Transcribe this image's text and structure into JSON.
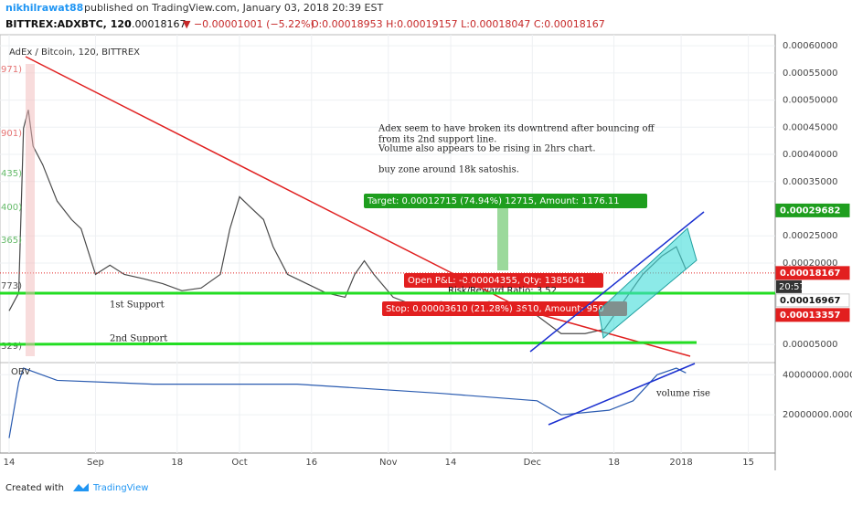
{
  "header": {
    "user": "nikhilrawat88",
    "published": "published on TradingView.com, January 03, 2018 20:39 EST",
    "symbol": "BITTREX:ADXBTC, 120",
    "last": "0.00018167",
    "change": "▼ −0.00001001 (−5.22%)",
    "ohlc": "O:0.00018953 H:0.00019157 L:0.00018047 C:0.00018167"
  },
  "chart_data": [
    {
      "type": "line",
      "title": "AdEx / Bitcoin, 120, BITTREX",
      "color": "#4a4a4a",
      "x": [
        0,
        2,
        3,
        4,
        5,
        7,
        10,
        13,
        15,
        18,
        21,
        24,
        28,
        32,
        36,
        40,
        44,
        46,
        48,
        50,
        53,
        55,
        58,
        62,
        66,
        70,
        72,
        74,
        76,
        80,
        85,
        90,
        95,
        100,
        105,
        110,
        115,
        120,
        124,
        128,
        132,
        136,
        139,
        141
      ],
      "values": [
        0.000112,
        0.000145,
        0.000448,
        0.000482,
        0.000415,
        0.000381,
        0.000314,
        0.00028,
        0.000263,
        0.000179,
        0.000196,
        0.000179,
        0.000171,
        0.000162,
        0.000149,
        0.000154,
        0.000179,
        0.000263,
        0.000322,
        0.000305,
        0.00028,
        0.00023,
        0.000179,
        0.000162,
        0.000145,
        0.000137,
        0.000179,
        0.000204,
        0.000179,
        0.000137,
        0.00012,
        0.000129,
        0.00012,
        0.000129,
        0.00012,
        0.000103,
        7e-05,
        7e-05,
        7.8e-05,
        0.000129,
        0.000179,
        0.000213,
        0.00023,
        0.000188
      ],
      "xlim": [
        -1.9,
        159.6
      ],
      "xticks": [
        {
          "value": 0,
          "label": "14"
        },
        {
          "value": 18,
          "label": "Sep"
        },
        {
          "value": 35,
          "label": "18"
        },
        {
          "value": 48,
          "label": "Oct"
        },
        {
          "value": 63,
          "label": "16"
        },
        {
          "value": 79,
          "label": "Nov"
        },
        {
          "value": 92,
          "label": "14"
        },
        {
          "value": 109,
          "label": "Dec"
        },
        {
          "value": 126,
          "label": "18"
        },
        {
          "value": 140,
          "label": "2018"
        },
        {
          "value": 154,
          "label": "15"
        }
      ],
      "ylim": [
        2e-05,
        0.000617
      ],
      "yticks": [
        {
          "value": 5e-05,
          "label": "0.00005000"
        },
        {
          "value": 0.0002,
          "label": "0.00020000"
        },
        {
          "value": 0.00025,
          "label": "0.00025000"
        },
        {
          "value": 0.00035,
          "label": "0.00035000"
        },
        {
          "value": 0.0004,
          "label": "0.00040000"
        },
        {
          "value": 0.00045,
          "label": "0.00045000"
        },
        {
          "value": 0.0005,
          "label": "0.00050000"
        },
        {
          "value": 0.00055,
          "label": "0.00055000"
        },
        {
          "value": 0.0006,
          "label": "0.00060000"
        }
      ],
      "grid": true,
      "price_badges": [
        {
          "value": 0.00029682,
          "label": "0.00029682",
          "color": "#1e9e1e"
        },
        {
          "value": 0.00018167,
          "label": "0.00018167",
          "color": "#e21f1f"
        },
        {
          "value": 0.00016967,
          "label": "0.00016967",
          "color": "#ffffff"
        },
        {
          "value": 0.00013357,
          "label": "0.00013357",
          "color": "#e21f1f"
        }
      ],
      "time_badge": "20:57",
      "note": [
        "Adex seem to have broken its downtrend after bouncing off",
        "from its 2nd support line.",
        " Volume also appears to be rising in 2hrs chart.",
        "buy zone around 18k satoshis."
      ],
      "target": "Target: 0.00012715 (74.94%) 12715, Amount: 1176.11",
      "pnl": "Open P&L: -0.00004355, Qty: 1385041",
      "risk_reward": "Risk/Reward Ratio: 3.52",
      "stop": "Stop: 0.00003610 (21.28%) 3610, Amount: 950",
      "support1": "1st Support",
      "support2": "2nd Support",
      "left_labels": [
        "971)",
        "901)",
        "435)",
        "400)",
        "365)",
        "773)",
        "329)"
      ]
    },
    {
      "type": "line",
      "title": "OBV",
      "color": "#2a5bb0",
      "x": [
        0,
        2,
        3,
        10,
        30,
        60,
        90,
        110,
        115,
        125,
        130,
        135,
        139,
        141
      ],
      "values": [
        8400000,
        36300000,
        43300000,
        37200000,
        35300000,
        35300000,
        30700000,
        27000000,
        20000000,
        22300000,
        27000000,
        40000000,
        43300000,
        40900000
      ],
      "xlim": [
        -1.9,
        159.6
      ],
      "ylim": [
        1400000,
        45600000
      ],
      "yticks": [
        {
          "value": 20000000,
          "label": "20000000.0000"
        },
        {
          "value": 40000000,
          "label": "40000000.0000"
        }
      ],
      "annotation": "volume rise"
    }
  ],
  "footer": {
    "created": "Created with",
    "brand": "TradingView"
  }
}
